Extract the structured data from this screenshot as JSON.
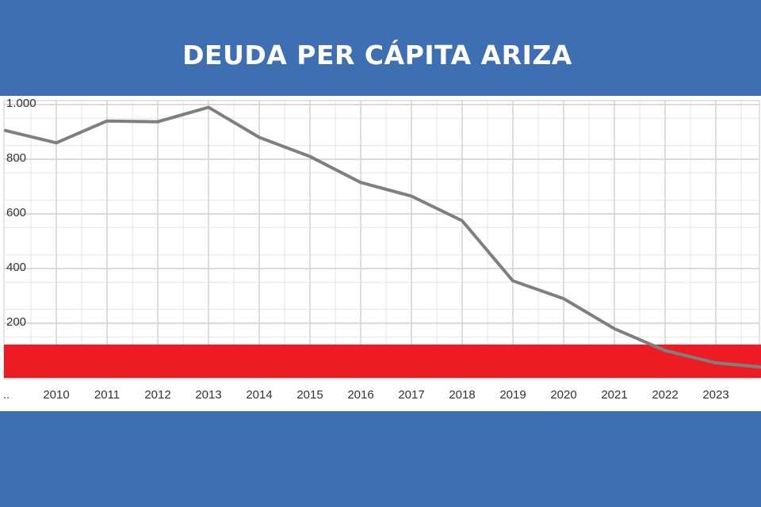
{
  "page": {
    "title": "DEUDA PER CÁPITA ARIZA",
    "background_color": "#3f6fb3",
    "title_color": "#ffffff"
  },
  "chart_data": {
    "type": "line",
    "title": "DEUDA PER CÁPITA ARIZA",
    "xlabel": "",
    "ylabel": "",
    "x_tick_labels": [
      "..",
      "2010",
      "2011",
      "2012",
      "2013",
      "2014",
      "2015",
      "2016",
      "2017",
      "2018",
      "2019",
      "2020",
      "2021",
      "2022",
      "2023"
    ],
    "y_tick_labels": [
      "1.000",
      "800",
      "600",
      "400",
      "200"
    ],
    "ylim": [
      0,
      1000
    ],
    "grid": true,
    "line_color": "#7f7f7f",
    "series": [
      {
        "x": [
          2009,
          2010,
          2011,
          2012,
          2013,
          2014,
          2015,
          2016,
          2017,
          2018,
          2019,
          2020,
          2021,
          2022,
          2023,
          2023.9
        ],
        "values": [
          905,
          860,
          940,
          937,
          990,
          880,
          810,
          715,
          665,
          575,
          355,
          290,
          180,
          100,
          55,
          40
        ]
      }
    ],
    "threshold_band": {
      "from": 0,
      "to": 122,
      "color": "#ed1c24"
    }
  }
}
